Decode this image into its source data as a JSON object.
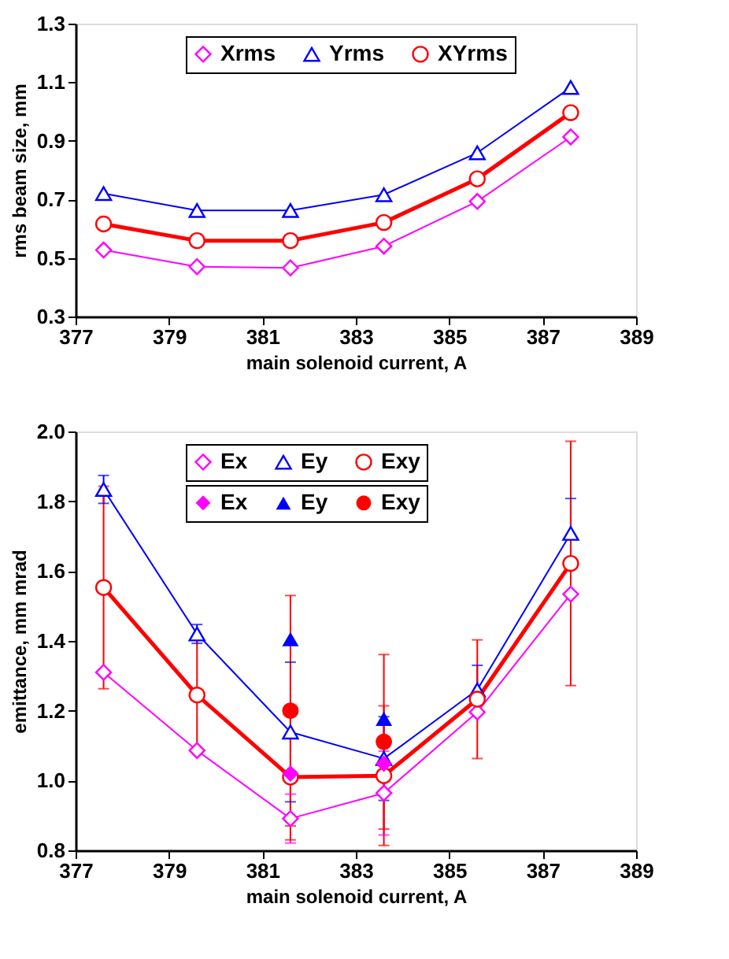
{
  "chart_data": [
    {
      "type": "line",
      "xlabel": "main solenoid current, A",
      "ylabel": "rms beam size, mm",
      "x": [
        377.6,
        379.6,
        381.6,
        383.6,
        385.6,
        387.6
      ],
      "xlim": [
        377,
        389
      ],
      "xticks": [
        377,
        379,
        381,
        383,
        385,
        387,
        389
      ],
      "ylim": [
        0.3,
        1.3
      ],
      "yticks": [
        0.3,
        0.5,
        0.7,
        0.9,
        1.1,
        1.3
      ],
      "grid": false,
      "legend": "top",
      "series": [
        {
          "name": "Xrms",
          "color": "#ff00ff",
          "marker": "diamond",
          "values": [
            0.527,
            0.47,
            0.466,
            0.54,
            0.693,
            0.913
          ]
        },
        {
          "name": "Yrms",
          "color": "#0000ff",
          "marker": "triangle",
          "values": [
            0.72,
            0.662,
            0.662,
            0.716,
            0.859,
            1.082
          ]
        },
        {
          "name": "XYrms",
          "color": "#ff0000",
          "marker": "circle",
          "values": [
            0.616,
            0.559,
            0.559,
            0.621,
            0.77,
            0.996
          ]
        }
      ]
    },
    {
      "type": "line",
      "xlabel": "main solenoid current, A",
      "ylabel": "emittance, mm mrad",
      "x": [
        377.6,
        379.6,
        381.6,
        383.6,
        385.6,
        387.6
      ],
      "xlim": [
        377,
        389
      ],
      "xticks": [
        377,
        379,
        381,
        383,
        385,
        387,
        389
      ],
      "ylim": [
        0.8,
        2.0
      ],
      "yticks": [
        0.8,
        {
          "value": 1.0,
          "label": "1.0"
        },
        1.2,
        1.4,
        1.6,
        1.8,
        {
          "value": 2.0,
          "label": "2.0"
        }
      ],
      "grid": false,
      "legend": "top",
      "series": [
        {
          "name": "Ex",
          "color": "#ff00ff",
          "marker": "diamond",
          "values": [
            1.31,
            1.086,
            0.891,
            0.964,
            1.196,
            1.534
          ],
          "errors": [
            null,
            null,
            0.07,
            0.12,
            null,
            null
          ]
        },
        {
          "name": "Ey",
          "color": "#0000ff",
          "marker": "triangle",
          "values": [
            1.834,
            1.42,
            1.139,
            1.063,
            1.26,
            1.708
          ],
          "errors": [
            0.04,
            0.027,
            0.2,
            0.12,
            0.07,
            0.1
          ]
        },
        {
          "name": "Exy",
          "color": "#ff0000",
          "marker": "circle",
          "values": [
            1.553,
            1.245,
            1.01,
            1.014,
            1.233,
            1.622
          ],
          "errors": [
            0.29,
            0.16,
            0.18,
            0.2,
            0.17,
            0.35
          ]
        },
        {
          "name": "Ex",
          "type": "scatter",
          "color": "#ff00ff",
          "marker": "diamond",
          "values": [
            null,
            null,
            1.02,
            1.048,
            null,
            null
          ]
        },
        {
          "name": "Ey",
          "type": "scatter",
          "color": "#0000ff",
          "marker": "triangle",
          "values": [
            null,
            null,
            1.405,
            1.177,
            null,
            null
          ]
        },
        {
          "name": "Exy",
          "type": "scatter",
          "color": "#ff0000",
          "marker": "circle",
          "values": [
            null,
            null,
            1.2,
            1.111,
            null,
            null
          ],
          "errors": [
            null,
            null,
            0.33,
            0.25,
            null,
            null
          ]
        }
      ]
    }
  ]
}
